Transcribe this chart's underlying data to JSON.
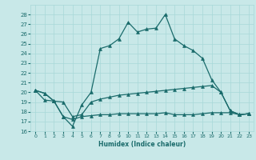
{
  "xlabel": "Humidex (Indice chaleur)",
  "background_color": "#c8e8e8",
  "grid_color": "#a8d8d8",
  "line_color": "#1a6b6b",
  "xlim": [
    -0.5,
    23.5
  ],
  "ylim": [
    16,
    29
  ],
  "yticks": [
    16,
    17,
    18,
    19,
    20,
    21,
    22,
    23,
    24,
    25,
    26,
    27,
    28
  ],
  "xticks": [
    0,
    1,
    2,
    3,
    4,
    5,
    6,
    7,
    8,
    9,
    10,
    11,
    12,
    13,
    14,
    15,
    16,
    17,
    18,
    19,
    20,
    21,
    22,
    23
  ],
  "series1_y": [
    20.2,
    19.9,
    19.1,
    17.5,
    16.5,
    18.7,
    20.0,
    24.5,
    24.8,
    25.5,
    27.2,
    26.2,
    26.5,
    26.6,
    28.0,
    25.5,
    24.8,
    24.3,
    23.5,
    21.3,
    20.0,
    18.1,
    17.7,
    17.8
  ],
  "series2_y": [
    20.2,
    19.9,
    19.1,
    19.0,
    17.5,
    17.7,
    19.0,
    19.3,
    19.5,
    19.7,
    19.8,
    19.9,
    20.0,
    20.1,
    20.2,
    20.3,
    20.4,
    20.5,
    20.6,
    20.7,
    20.0,
    18.1,
    17.7,
    17.8
  ],
  "series3_y": [
    20.2,
    19.2,
    19.1,
    17.5,
    17.2,
    17.5,
    17.6,
    17.7,
    17.7,
    17.8,
    17.8,
    17.8,
    17.8,
    17.8,
    17.9,
    17.7,
    17.7,
    17.7,
    17.8,
    17.9,
    17.9,
    17.9,
    17.7,
    17.8
  ]
}
